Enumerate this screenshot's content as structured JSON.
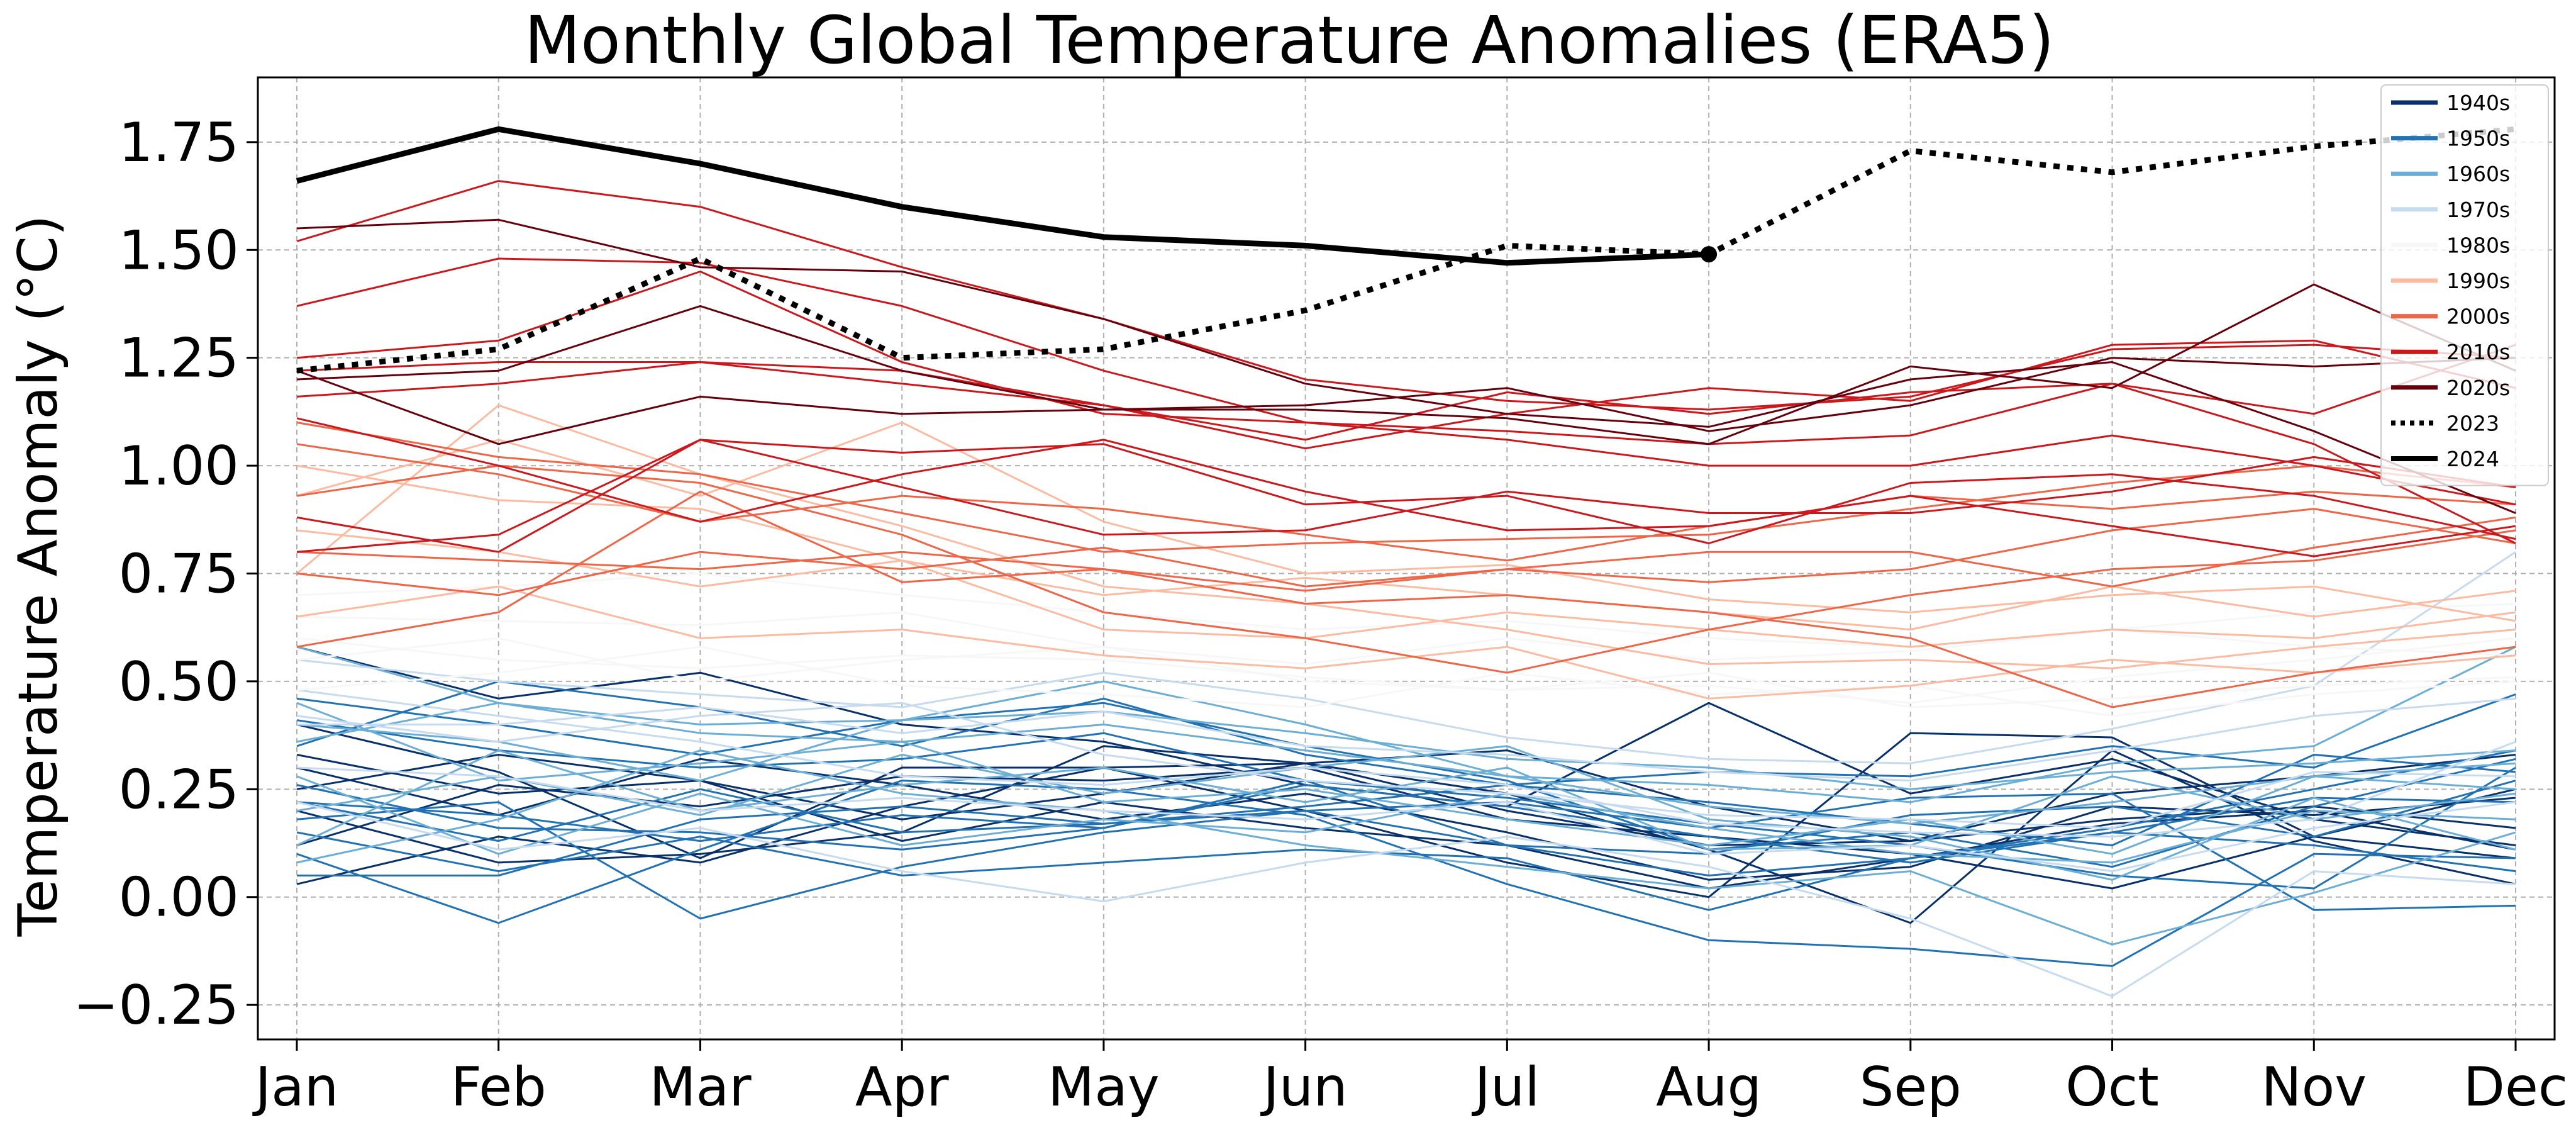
{
  "chart_data": {
    "type": "line",
    "title": "Monthly Global Temperature Anomalies (ERA5)",
    "xlabel": "",
    "ylabel": "Temperature Anomaly (°C)",
    "categories": [
      "Jan",
      "Feb",
      "Mar",
      "Apr",
      "May",
      "Jun",
      "Jul",
      "Aug",
      "Sep",
      "Oct",
      "Nov",
      "Dec"
    ],
    "ylim": [
      -0.33,
      1.9
    ],
    "yticks": [
      -0.25,
      0.0,
      0.25,
      0.5,
      0.75,
      1.0,
      1.25,
      1.5,
      1.75
    ],
    "ytick_labels": [
      "−0.25",
      "0.00",
      "0.25",
      "0.50",
      "0.75",
      "1.00",
      "1.25",
      "1.50",
      "1.75"
    ],
    "grid": true,
    "legend_position": "top-right",
    "legend": [
      {
        "label": "1940s",
        "color": "#08306b",
        "style": "solid"
      },
      {
        "label": "1950s",
        "color": "#2171b5",
        "style": "solid"
      },
      {
        "label": "1960s",
        "color": "#6baed6",
        "style": "solid"
      },
      {
        "label": "1970s",
        "color": "#c6dbef",
        "style": "solid"
      },
      {
        "label": "1980s",
        "color": "#f7f7f7",
        "style": "solid"
      },
      {
        "label": "1990s",
        "color": "#fcbba1",
        "style": "solid"
      },
      {
        "label": "2000s",
        "color": "#ef6548",
        "style": "solid"
      },
      {
        "label": "2010s",
        "color": "#cb181d",
        "style": "solid"
      },
      {
        "label": "2020s",
        "color": "#67000d",
        "style": "solid"
      },
      {
        "label": "2023",
        "color": "#000000",
        "style": "dotted"
      },
      {
        "label": "2024",
        "color": "#000000",
        "style": "solid"
      }
    ],
    "series": [
      {
        "decade": "1940s",
        "color": "#08306b",
        "values": [
          0.33,
          0.24,
          0.27,
          0.13,
          0.22,
          0.16,
          0.12,
          0.02,
          0.09,
          0.17,
          0.2,
          0.11
        ]
      },
      {
        "decade": "1940s",
        "color": "#08306b",
        "values": [
          0.58,
          0.46,
          0.52,
          0.4,
          0.36,
          0.26,
          0.21,
          0.45,
          0.24,
          0.32,
          0.18,
          0.12
        ]
      },
      {
        "decade": "1940s",
        "color": "#08306b",
        "values": [
          0.4,
          0.29,
          0.09,
          0.3,
          0.3,
          0.31,
          0.24,
          0.11,
          -0.06,
          0.34,
          0.13,
          0.03
        ]
      },
      {
        "decade": "1940s",
        "color": "#08306b",
        "values": [
          0.12,
          0.26,
          0.21,
          0.28,
          0.27,
          0.3,
          0.18,
          0.14,
          0.1,
          0.02,
          0.14,
          0.25
        ]
      },
      {
        "decade": "1940s",
        "color": "#08306b",
        "values": [
          0.03,
          0.14,
          0.08,
          0.21,
          0.3,
          0.2,
          0.08,
          0.0,
          0.38,
          0.37,
          0.14,
          0.09
        ]
      },
      {
        "decade": "1940s",
        "color": "#08306b",
        "values": [
          0.25,
          0.33,
          0.27,
          0.18,
          0.24,
          0.31,
          0.34,
          0.21,
          0.13,
          0.24,
          0.28,
          0.33
        ]
      },
      {
        "decade": "1940s",
        "color": "#08306b",
        "values": [
          0.2,
          0.08,
          0.1,
          0.15,
          0.35,
          0.31,
          0.2,
          0.12,
          0.13,
          0.18,
          0.21,
          0.16
        ]
      },
      {
        "decade": "1940s",
        "color": "#08306b",
        "values": [
          0.3,
          0.19,
          0.32,
          0.26,
          0.18,
          0.24,
          0.15,
          0.04,
          0.07,
          0.21,
          0.19,
          0.23
        ]
      },
      {
        "decade": "1950s",
        "color": "#2171b5",
        "values": [
          0.15,
          0.06,
          0.14,
          0.05,
          0.08,
          0.11,
          0.09,
          -0.03,
          0.09,
          0.16,
          0.25,
          0.34
        ]
      },
      {
        "decade": "1950s",
        "color": "#2171b5",
        "values": [
          0.46,
          0.4,
          0.33,
          0.41,
          0.45,
          0.35,
          0.27,
          0.11,
          0.15,
          0.07,
          0.21,
          0.32
        ]
      },
      {
        "decade": "1950s",
        "color": "#2171b5",
        "values": [
          0.05,
          0.05,
          0.18,
          0.21,
          0.17,
          0.2,
          0.12,
          0.1,
          0.19,
          0.21,
          0.14,
          0.27
        ]
      },
      {
        "decade": "1950s",
        "color": "#2171b5",
        "values": [
          0.22,
          0.13,
          0.25,
          0.15,
          0.17,
          0.21,
          0.26,
          0.22,
          0.17,
          0.12,
          0.33,
          0.29
        ]
      },
      {
        "decade": "1950s",
        "color": "#2171b5",
        "values": [
          0.1,
          -0.06,
          0.11,
          0.27,
          0.25,
          0.19,
          0.03,
          -0.1,
          -0.12,
          -0.16,
          0.1,
          0.09
        ]
      },
      {
        "decade": "1950s",
        "color": "#2171b5",
        "values": [
          0.41,
          0.34,
          0.3,
          0.32,
          0.38,
          0.27,
          0.23,
          0.17,
          0.12,
          0.05,
          0.02,
          0.3
        ]
      },
      {
        "decade": "1950s",
        "color": "#2171b5",
        "values": [
          0.26,
          0.16,
          0.15,
          0.11,
          0.16,
          0.26,
          0.21,
          0.14,
          0.08,
          0.15,
          0.23,
          0.22
        ]
      },
      {
        "decade": "1950s",
        "color": "#2171b5",
        "values": [
          0.18,
          0.22,
          -0.05,
          0.07,
          0.15,
          0.2,
          0.22,
          0.16,
          0.23,
          0.24,
          -0.03,
          -0.02
        ]
      },
      {
        "decade": "1950s",
        "color": "#2171b5",
        "values": [
          0.35,
          0.5,
          0.44,
          0.35,
          0.46,
          0.33,
          0.26,
          0.29,
          0.28,
          0.35,
          0.3,
          0.47
        ]
      },
      {
        "decade": "1950s",
        "color": "#2171b5",
        "values": [
          0.22,
          0.19,
          0.13,
          0.19,
          0.16,
          0.27,
          0.12,
          0.05,
          0.09,
          0.15,
          0.12,
          0.06
        ]
      },
      {
        "decade": "1960s",
        "color": "#6baed6",
        "values": [
          0.45,
          0.27,
          0.31,
          0.36,
          0.22,
          0.25,
          0.18,
          0.12,
          0.18,
          0.1,
          0.28,
          0.25
        ]
      },
      {
        "decade": "1960s",
        "color": "#6baed6",
        "values": [
          0.12,
          0.34,
          0.2,
          0.26,
          0.3,
          0.22,
          0.3,
          0.11,
          0.12,
          0.28,
          0.18,
          0.24
        ]
      },
      {
        "decade": "1960s",
        "color": "#6baed6",
        "values": [
          0.36,
          0.45,
          0.38,
          0.36,
          0.4,
          0.34,
          0.28,
          0.21,
          0.17,
          0.22,
          0.28,
          0.31
        ]
      },
      {
        "decade": "1960s",
        "color": "#6baed6",
        "values": [
          0.58,
          0.45,
          0.4,
          0.41,
          0.5,
          0.4,
          0.28,
          0.26,
          0.22,
          0.31,
          0.35,
          0.58
        ]
      },
      {
        "decade": "1960s",
        "color": "#6baed6",
        "values": [
          0.2,
          0.28,
          0.19,
          0.33,
          0.24,
          0.3,
          0.35,
          0.18,
          0.14,
          0.04,
          0.23,
          0.11
        ]
      },
      {
        "decade": "1960s",
        "color": "#6baed6",
        "values": [
          0.28,
          0.1,
          0.24,
          0.12,
          0.18,
          0.15,
          0.24,
          0.16,
          0.1,
          0.08,
          0.2,
          0.18
        ]
      },
      {
        "decade": "1960s",
        "color": "#6baed6",
        "values": [
          0.4,
          0.36,
          0.27,
          0.41,
          0.43,
          0.38,
          0.32,
          0.3,
          0.25,
          0.29,
          0.31,
          0.34
        ]
      },
      {
        "decade": "1960s",
        "color": "#6baed6",
        "values": [
          0.08,
          0.18,
          0.34,
          0.24,
          0.2,
          0.12,
          0.07,
          0.02,
          0.06,
          -0.11,
          0.01,
          0.15
        ]
      },
      {
        "decade": "1970s",
        "color": "#c6dbef",
        "values": [
          0.42,
          0.36,
          0.42,
          0.45,
          0.33,
          0.27,
          0.24,
          0.19,
          0.18,
          0.16,
          0.29,
          0.28
        ]
      },
      {
        "decade": "1970s",
        "color": "#c6dbef",
        "values": [
          0.22,
          0.11,
          0.16,
          0.06,
          -0.01,
          0.08,
          0.14,
          0.07,
          -0.05,
          -0.23,
          0.06,
          0.03
        ]
      },
      {
        "decade": "1970s",
        "color": "#c6dbef",
        "values": [
          0.4,
          0.4,
          0.44,
          0.38,
          0.43,
          0.35,
          0.33,
          0.29,
          0.27,
          0.34,
          0.42,
          0.46
        ]
      },
      {
        "decade": "1970s",
        "color": "#c6dbef",
        "values": [
          0.48,
          0.42,
          0.36,
          0.28,
          0.26,
          0.3,
          0.26,
          0.17,
          0.15,
          0.14,
          0.18,
          0.36
        ]
      },
      {
        "decade": "1970s",
        "color": "#c6dbef",
        "values": [
          0.3,
          0.28,
          0.2,
          0.23,
          0.2,
          0.18,
          0.22,
          0.1,
          0.12,
          0.06,
          0.16,
          0.22
        ]
      },
      {
        "decade": "1970s",
        "color": "#c6dbef",
        "values": [
          0.55,
          0.5,
          0.47,
          0.44,
          0.52,
          0.46,
          0.37,
          0.32,
          0.31,
          0.39,
          0.49,
          0.8
        ]
      },
      {
        "decade": "1980s",
        "color": "#f7f7f7",
        "values": [
          0.55,
          0.6,
          0.5,
          0.55,
          0.58,
          0.5,
          0.48,
          0.52,
          0.44,
          0.46,
          0.49,
          0.51
        ]
      },
      {
        "decade": "1980s",
        "color": "#f7f7f7",
        "values": [
          0.65,
          0.64,
          0.63,
          0.66,
          0.58,
          0.54,
          0.6,
          0.55,
          0.57,
          0.62,
          0.58,
          0.56
        ]
      },
      {
        "decade": "1980s",
        "color": "#f7f7f7",
        "values": [
          0.48,
          0.52,
          0.58,
          0.49,
          0.47,
          0.44,
          0.52,
          0.47,
          0.49,
          0.42,
          0.47,
          0.5
        ]
      },
      {
        "decade": "1980s",
        "color": "#f7f7f7",
        "values": [
          0.7,
          0.72,
          0.75,
          0.7,
          0.66,
          0.62,
          0.64,
          0.6,
          0.58,
          0.62,
          0.66,
          0.68
        ]
      },
      {
        "decade": "1980s",
        "color": "#f7f7f7",
        "values": [
          0.6,
          0.55,
          0.53,
          0.56,
          0.55,
          0.51,
          0.48,
          0.49,
          0.45,
          0.51,
          0.55,
          0.6
        ]
      },
      {
        "decade": "1990s",
        "color": "#fcbba1",
        "values": [
          0.75,
          1.14,
          0.98,
          0.86,
          0.72,
          0.68,
          0.62,
          0.54,
          0.55,
          0.53,
          0.58,
          0.62
        ]
      },
      {
        "decade": "1990s",
        "color": "#fcbba1",
        "values": [
          0.85,
          0.8,
          0.72,
          0.78,
          0.62,
          0.6,
          0.66,
          0.62,
          0.58,
          0.62,
          0.6,
          0.66
        ]
      },
      {
        "decade": "1990s",
        "color": "#fcbba1",
        "values": [
          1.0,
          0.92,
          0.9,
          0.78,
          0.7,
          0.74,
          0.7,
          0.66,
          0.62,
          0.72,
          0.65,
          0.71
        ]
      },
      {
        "decade": "1990s",
        "color": "#fcbba1",
        "values": [
          0.65,
          0.72,
          0.6,
          0.62,
          0.56,
          0.53,
          0.58,
          0.46,
          0.49,
          0.55,
          0.52,
          0.56
        ]
      },
      {
        "decade": "1990s",
        "color": "#fcbba1",
        "values": [
          0.93,
          1.06,
          0.93,
          1.1,
          0.87,
          0.75,
          0.77,
          0.69,
          0.66,
          0.7,
          0.72,
          0.64
        ]
      },
      {
        "decade": "2000s",
        "color": "#ef6548",
        "values": [
          0.93,
          1.0,
          0.96,
          0.84,
          0.66,
          0.6,
          0.52,
          0.62,
          0.7,
          0.76,
          0.78,
          0.85
        ]
      },
      {
        "decade": "2000s",
        "color": "#ef6548",
        "values": [
          0.75,
          0.7,
          0.8,
          0.76,
          0.81,
          0.72,
          0.76,
          0.73,
          0.76,
          0.85,
          0.9,
          0.82
        ]
      },
      {
        "decade": "2000s",
        "color": "#ef6548",
        "values": [
          1.05,
          0.98,
          0.87,
          0.93,
          0.9,
          0.84,
          0.78,
          0.86,
          0.93,
          0.9,
          0.94,
          0.91
        ]
      },
      {
        "decade": "2000s",
        "color": "#ef6548",
        "values": [
          0.58,
          0.66,
          0.94,
          0.73,
          0.76,
          0.71,
          0.76,
          0.8,
          0.8,
          0.72,
          0.81,
          0.88
        ]
      },
      {
        "decade": "2000s",
        "color": "#ef6548",
        "values": [
          1.1,
          1.02,
          0.98,
          0.89,
          0.8,
          0.82,
          0.83,
          0.84,
          0.9,
          0.96,
          1.0,
          0.95
        ]
      },
      {
        "decade": "2000s",
        "color": "#ef6548",
        "values": [
          0.8,
          0.78,
          0.76,
          0.8,
          0.76,
          0.68,
          0.7,
          0.66,
          0.6,
          0.44,
          0.52,
          0.58
        ]
      },
      {
        "decade": "2010s",
        "color": "#cb181d",
        "values": [
          1.37,
          1.48,
          1.47,
          1.37,
          1.22,
          1.1,
          1.08,
          1.05,
          1.07,
          1.19,
          1.05,
          0.82
        ]
      },
      {
        "decade": "2010s",
        "color": "#cb181d",
        "values": [
          1.52,
          1.66,
          1.6,
          1.46,
          1.34,
          1.2,
          1.15,
          1.13,
          1.16,
          1.27,
          1.28,
          1.25
        ]
      },
      {
        "decade": "2010s",
        "color": "#cb181d",
        "values": [
          1.25,
          1.29,
          1.45,
          1.24,
          1.12,
          1.1,
          1.06,
          1.0,
          1.0,
          1.07,
          1.0,
          0.91
        ]
      },
      {
        "decade": "2010s",
        "color": "#cb181d",
        "values": [
          1.16,
          1.19,
          1.24,
          1.19,
          1.14,
          1.04,
          1.12,
          1.18,
          1.15,
          1.28,
          1.29,
          1.18
        ]
      },
      {
        "decade": "2010s",
        "color": "#cb181d",
        "values": [
          1.22,
          1.24,
          1.24,
          1.22,
          1.14,
          1.06,
          1.17,
          1.12,
          1.17,
          1.19,
          1.12,
          1.28
        ]
      },
      {
        "decade": "2010s",
        "color": "#cb181d",
        "values": [
          0.88,
          0.8,
          1.06,
          1.03,
          1.05,
          0.91,
          0.93,
          0.82,
          0.96,
          0.98,
          0.93,
          0.83
        ]
      },
      {
        "decade": "2010s",
        "color": "#cb181d",
        "values": [
          1.11,
          1.0,
          0.87,
          0.98,
          1.06,
          0.94,
          0.85,
          0.86,
          0.93,
          0.86,
          0.79,
          0.86
        ]
      },
      {
        "decade": "2010s",
        "color": "#cb181d",
        "values": [
          0.8,
          0.84,
          1.06,
          0.95,
          0.84,
          0.85,
          0.94,
          0.89,
          0.89,
          0.94,
          1.02,
          0.95
        ]
      },
      {
        "decade": "2020s",
        "color": "#67000d",
        "values": [
          1.55,
          1.57,
          1.46,
          1.45,
          1.34,
          1.19,
          1.12,
          1.09,
          1.2,
          1.24,
          1.08,
          0.89
        ]
      },
      {
        "decade": "2020s",
        "color": "#67000d",
        "values": [
          1.2,
          1.22,
          1.37,
          1.22,
          1.13,
          1.13,
          1.11,
          1.05,
          1.23,
          1.18,
          1.42,
          1.22
        ]
      },
      {
        "decade": "2020s",
        "color": "#67000d",
        "values": [
          1.22,
          1.05,
          1.16,
          1.12,
          1.13,
          1.14,
          1.18,
          1.08,
          1.14,
          1.25,
          1.23,
          1.25
        ]
      }
    ],
    "highlight_series": [
      {
        "name": "2023",
        "style": "dotted",
        "color": "#000000",
        "values": [
          1.22,
          1.27,
          1.48,
          1.25,
          1.27,
          1.36,
          1.51,
          1.49,
          1.73,
          1.68,
          1.74,
          1.78
        ]
      },
      {
        "name": "2024",
        "style": "solid",
        "color": "#000000",
        "values": [
          1.66,
          1.78,
          1.7,
          1.6,
          1.53,
          1.51,
          1.47,
          1.49
        ],
        "end_marker": true
      }
    ]
  }
}
